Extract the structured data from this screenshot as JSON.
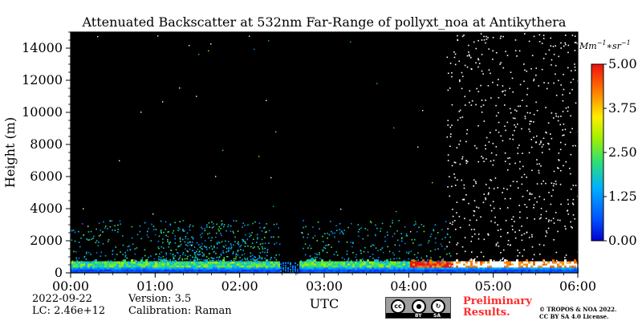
{
  "chart_data": {
    "type": "heatmap",
    "title": "Attenuated Backscatter at 532nm Far-Range of pollyxt_noa at Antikythera",
    "xlabel": "UTC",
    "ylabel": "Height (m)",
    "xlim": [
      "00:00",
      "06:00"
    ],
    "ylim": [
      0,
      15000
    ],
    "x_ticks": [
      "00:00",
      "01:00",
      "02:00",
      "03:00",
      "04:00",
      "05:00",
      "06:00"
    ],
    "y_ticks": [
      0,
      2000,
      4000,
      6000,
      8000,
      10000,
      12000,
      14000
    ],
    "colorbar": {
      "unit": "Mm^{-1}*sr^{-1}",
      "unit_parts": {
        "base1": "Mm",
        "exp1": "−1",
        "mid": "∗sr",
        "exp2": "−1"
      },
      "range": [
        0,
        5
      ],
      "ticks": [
        "0.00",
        "1.25",
        "2.50",
        "3.75",
        "5.00"
      ],
      "colormap": "jet"
    },
    "features": [
      {
        "name": "boundary layer aerosol",
        "top_height": 600,
        "time_range": [
          "00:00",
          "06:00"
        ],
        "peak_value": 3.0
      },
      {
        "name": "elevated aerosol plumes",
        "height_range": [
          700,
          3000
        ],
        "time_range": [
          "00:00",
          "04:30"
        ],
        "value": 1.5
      },
      {
        "name": "instrument gap / no data",
        "time_range": [
          "02:28",
          "02:42"
        ]
      },
      {
        "name": "daytime background noise",
        "time_range": [
          "04:25",
          "06:00"
        ],
        "height_range": [
          400,
          15000
        ]
      }
    ]
  },
  "footer": {
    "date": "2022-09-22",
    "version": "Version: 3.5",
    "lc": "LC: 2.46e+12",
    "calibration": "Calibration: Raman",
    "license_badge": {
      "cc": "cc",
      "by": "BY",
      "sa": "SA"
    },
    "preliminary_line1": "Preliminary",
    "preliminary_line2": "Results.",
    "copyright_line1": "© TROPOS & NOA 2022.",
    "copyright_line2": "CC BY SA 4.0 License."
  }
}
